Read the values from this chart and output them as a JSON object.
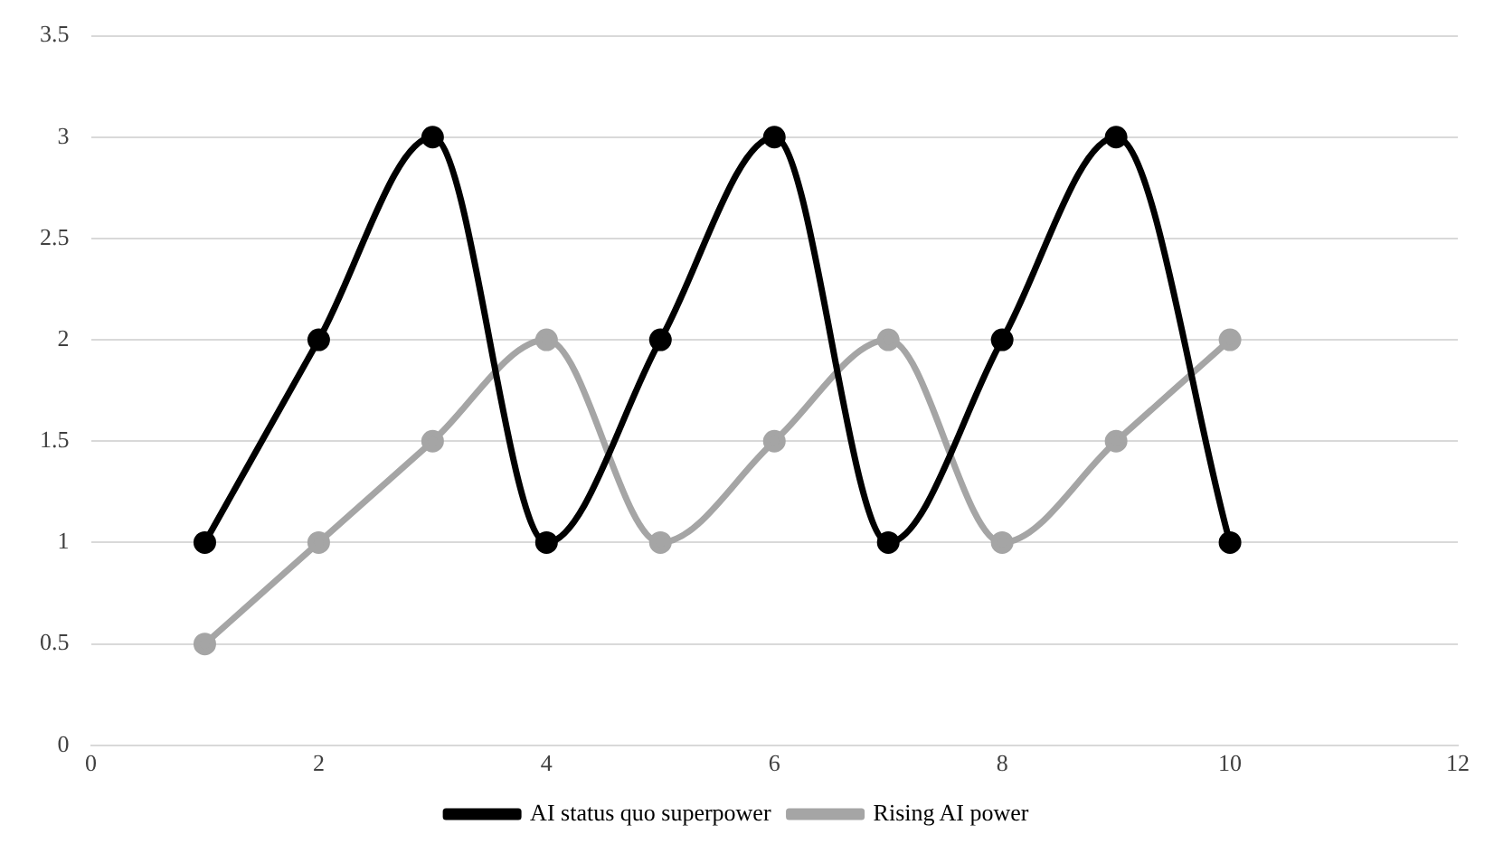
{
  "chart_data": {
    "type": "line",
    "x": [
      1,
      2,
      3,
      4,
      5,
      6,
      7,
      8,
      9,
      10
    ],
    "series": [
      {
        "name": "AI status quo superpower",
        "color": "#000000",
        "values": [
          1,
          2,
          3,
          1,
          2,
          3,
          1,
          2,
          3,
          1
        ]
      },
      {
        "name": "Rising AI power",
        "color": "#a5a5a5",
        "values": [
          0.5,
          1,
          1.5,
          2,
          1,
          1.5,
          2,
          1,
          1.5,
          2
        ]
      }
    ],
    "xlim": [
      0,
      12
    ],
    "xticks": [
      0,
      2,
      4,
      6,
      8,
      10,
      12
    ],
    "ylim": [
      0,
      3.5
    ],
    "yticks": [
      0,
      0.5,
      1,
      1.5,
      2,
      2.5,
      3,
      3.5
    ],
    "grid": "y",
    "legend": "bottom",
    "marker": "circle",
    "line_style": "solid"
  }
}
